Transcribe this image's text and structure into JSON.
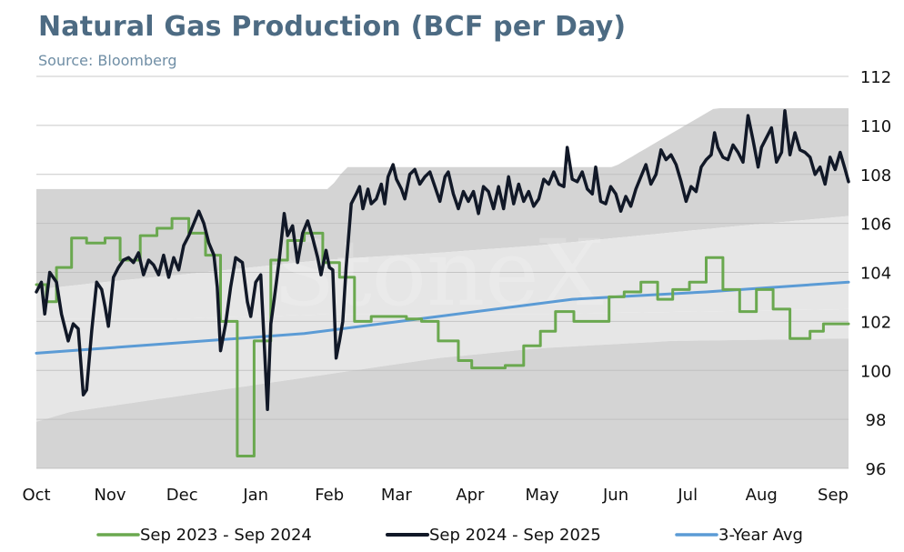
{
  "title": "Natural Gas Production (BCF per Day)",
  "subtitle": "Source: Bloomberg",
  "watermark": "StoneX",
  "chart_data": {
    "type": "line",
    "ylim": [
      96,
      112
    ],
    "yticks": [
      96,
      98,
      100,
      102,
      104,
      106,
      108,
      110,
      112
    ],
    "y_axis_side": "right",
    "x_range": [
      0,
      48.5
    ],
    "x_unit": "weeks from October 1",
    "month_ticks": [
      {
        "label": "Oct",
        "x": 0
      },
      {
        "label": "Nov",
        "x": 4.4
      },
      {
        "label": "Dec",
        "x": 8.7
      },
      {
        "label": "Jan",
        "x": 13.1
      },
      {
        "label": "Feb",
        "x": 17.5
      },
      {
        "label": "Mar",
        "x": 21.5
      },
      {
        "label": "Apr",
        "x": 25.9
      },
      {
        "label": "May",
        "x": 30.2
      },
      {
        "label": "Jun",
        "x": 34.6
      },
      {
        "label": "Jul",
        "x": 38.9
      },
      {
        "label": "Aug",
        "x": 43.3
      },
      {
        "label": "Sep",
        "x": 47.7
      }
    ],
    "grid": true,
    "legend_position": "bottom",
    "range_bands": {
      "outer_color": "#d4d4d4",
      "inner_color": "#e6e6e6",
      "outer_upper": [
        [
          0,
          107.4
        ],
        [
          17.5,
          107.4
        ],
        [
          18.5,
          108.3
        ],
        [
          34.5,
          108.3
        ],
        [
          39.5,
          110.3
        ],
        [
          40.5,
          110.7
        ],
        [
          48.5,
          110.7
        ]
      ],
      "inner_upper": [
        [
          0,
          103.3
        ],
        [
          4,
          103.6
        ],
        [
          10,
          104.0
        ],
        [
          17,
          104.5
        ],
        [
          24,
          104.8
        ],
        [
          30,
          105.1
        ],
        [
          36,
          105.5
        ],
        [
          42,
          105.9
        ],
        [
          48.5,
          106.3
        ]
      ],
      "inner_lower": [
        [
          0,
          102.1
        ],
        [
          8,
          102.1
        ],
        [
          18,
          102.3
        ],
        [
          30,
          102.3
        ],
        [
          48.5,
          102.5
        ]
      ],
      "outer_lower": [
        [
          0,
          97.9
        ],
        [
          2,
          98.3
        ],
        [
          5,
          98.6
        ],
        [
          9,
          99.0
        ],
        [
          13,
          99.4
        ],
        [
          18,
          99.9
        ],
        [
          24,
          100.5
        ],
        [
          30,
          100.9
        ],
        [
          38,
          101.2
        ],
        [
          48.5,
          101.3
        ]
      ]
    },
    "series": [
      {
        "name": "Sep 2023 - Sep 2024",
        "color": "#6aa84f",
        "style": "step",
        "points": [
          [
            0,
            103.5
          ],
          [
            0.6,
            102.8
          ],
          [
            1.2,
            104.2
          ],
          [
            2.1,
            105.4
          ],
          [
            3.0,
            105.2
          ],
          [
            4.1,
            105.4
          ],
          [
            5.0,
            104.5
          ],
          [
            6.2,
            105.5
          ],
          [
            7.2,
            105.8
          ],
          [
            8.1,
            106.2
          ],
          [
            9.1,
            105.6
          ],
          [
            10.1,
            104.7
          ],
          [
            11.0,
            102.0
          ],
          [
            12.0,
            96.5
          ],
          [
            13.0,
            101.2
          ],
          [
            14.0,
            104.5
          ],
          [
            15.0,
            105.3
          ],
          [
            16.0,
            105.6
          ],
          [
            17.1,
            104.4
          ],
          [
            18.1,
            103.8
          ],
          [
            19.0,
            102.0
          ],
          [
            20.0,
            102.2
          ],
          [
            21.2,
            102.2
          ],
          [
            22.1,
            102.1
          ],
          [
            23.0,
            102.0
          ],
          [
            24.0,
            101.2
          ],
          [
            25.2,
            100.4
          ],
          [
            26.0,
            100.1
          ],
          [
            27.0,
            100.1
          ],
          [
            28.0,
            100.2
          ],
          [
            29.1,
            101.0
          ],
          [
            30.1,
            101.6
          ],
          [
            31.0,
            102.4
          ],
          [
            32.1,
            102.0
          ],
          [
            33.1,
            102.0
          ],
          [
            34.2,
            103.0
          ],
          [
            35.1,
            103.2
          ],
          [
            36.1,
            103.6
          ],
          [
            37.1,
            102.9
          ],
          [
            38.0,
            103.3
          ],
          [
            39.0,
            103.6
          ],
          [
            40.0,
            104.6
          ],
          [
            41.0,
            103.3
          ],
          [
            42.0,
            102.4
          ],
          [
            43.0,
            103.3
          ],
          [
            44.0,
            102.5
          ],
          [
            45.0,
            101.3
          ],
          [
            46.2,
            101.6
          ],
          [
            47.0,
            101.9
          ],
          [
            48.0,
            101.9
          ],
          [
            48.5,
            101.9
          ]
        ]
      },
      {
        "name": "Sep 2024 - Sep 2025",
        "color": "#111827",
        "style": "line",
        "points": [
          [
            0,
            103.2
          ],
          [
            0.3,
            103.6
          ],
          [
            0.5,
            102.3
          ],
          [
            0.8,
            104.0
          ],
          [
            1.2,
            103.6
          ],
          [
            1.5,
            102.3
          ],
          [
            1.9,
            101.2
          ],
          [
            2.2,
            101.9
          ],
          [
            2.5,
            101.7
          ],
          [
            2.8,
            99.0
          ],
          [
            3.0,
            99.2
          ],
          [
            3.3,
            101.6
          ],
          [
            3.6,
            103.6
          ],
          [
            3.9,
            103.3
          ],
          [
            4.1,
            102.6
          ],
          [
            4.3,
            101.8
          ],
          [
            4.6,
            103.8
          ],
          [
            4.9,
            104.2
          ],
          [
            5.2,
            104.5
          ],
          [
            5.5,
            104.6
          ],
          [
            5.8,
            104.4
          ],
          [
            6.1,
            104.8
          ],
          [
            6.4,
            103.9
          ],
          [
            6.7,
            104.5
          ],
          [
            7.0,
            104.3
          ],
          [
            7.3,
            103.9
          ],
          [
            7.6,
            104.7
          ],
          [
            7.9,
            103.8
          ],
          [
            8.2,
            104.6
          ],
          [
            8.5,
            104.1
          ],
          [
            8.8,
            105.1
          ],
          [
            9.1,
            105.5
          ],
          [
            9.4,
            106.0
          ],
          [
            9.7,
            106.5
          ],
          [
            10.0,
            106.0
          ],
          [
            10.3,
            105.2
          ],
          [
            10.6,
            104.7
          ],
          [
            10.8,
            103.4
          ],
          [
            11.0,
            100.8
          ],
          [
            11.3,
            101.9
          ],
          [
            11.6,
            103.4
          ],
          [
            11.9,
            104.6
          ],
          [
            12.3,
            104.4
          ],
          [
            12.6,
            102.8
          ],
          [
            12.8,
            102.2
          ],
          [
            13.1,
            103.6
          ],
          [
            13.4,
            103.9
          ],
          [
            13.6,
            101.2
          ],
          [
            13.8,
            98.4
          ],
          [
            14.0,
            101.9
          ],
          [
            14.2,
            102.9
          ],
          [
            14.5,
            104.5
          ],
          [
            14.8,
            106.4
          ],
          [
            15.0,
            105.5
          ],
          [
            15.3,
            105.9
          ],
          [
            15.6,
            104.4
          ],
          [
            15.9,
            105.6
          ],
          [
            16.2,
            106.1
          ],
          [
            16.5,
            105.4
          ],
          [
            16.8,
            104.6
          ],
          [
            17.0,
            103.9
          ],
          [
            17.3,
            104.9
          ],
          [
            17.5,
            104.2
          ],
          [
            17.7,
            104.1
          ],
          [
            17.9,
            100.5
          ],
          [
            18.1,
            101.2
          ],
          [
            18.3,
            102.0
          ],
          [
            18.5,
            104.2
          ],
          [
            18.8,
            106.8
          ],
          [
            19.1,
            107.2
          ],
          [
            19.3,
            107.5
          ],
          [
            19.5,
            106.6
          ],
          [
            19.8,
            107.4
          ],
          [
            20.0,
            106.8
          ],
          [
            20.3,
            107.0
          ],
          [
            20.6,
            107.6
          ],
          [
            20.8,
            106.8
          ],
          [
            21.0,
            107.9
          ],
          [
            21.3,
            108.4
          ],
          [
            21.5,
            107.8
          ],
          [
            21.8,
            107.4
          ],
          [
            22.0,
            107.0
          ],
          [
            22.3,
            108.0
          ],
          [
            22.6,
            108.2
          ],
          [
            22.9,
            107.6
          ],
          [
            23.2,
            107.9
          ],
          [
            23.5,
            108.1
          ],
          [
            23.8,
            107.5
          ],
          [
            24.1,
            106.9
          ],
          [
            24.4,
            107.9
          ],
          [
            24.6,
            108.1
          ],
          [
            24.9,
            107.2
          ],
          [
            25.2,
            106.6
          ],
          [
            25.5,
            107.3
          ],
          [
            25.8,
            106.9
          ],
          [
            26.1,
            107.3
          ],
          [
            26.4,
            106.4
          ],
          [
            26.7,
            107.5
          ],
          [
            27.0,
            107.3
          ],
          [
            27.3,
            106.6
          ],
          [
            27.6,
            107.5
          ],
          [
            27.9,
            106.6
          ],
          [
            28.2,
            107.9
          ],
          [
            28.5,
            106.8
          ],
          [
            28.8,
            107.6
          ],
          [
            29.1,
            106.9
          ],
          [
            29.4,
            107.3
          ],
          [
            29.7,
            106.7
          ],
          [
            30.0,
            107.0
          ],
          [
            30.3,
            107.8
          ],
          [
            30.6,
            107.6
          ],
          [
            30.9,
            108.1
          ],
          [
            31.2,
            107.6
          ],
          [
            31.5,
            107.5
          ],
          [
            31.7,
            109.1
          ],
          [
            32.0,
            107.8
          ],
          [
            32.3,
            107.7
          ],
          [
            32.6,
            108.1
          ],
          [
            32.9,
            107.4
          ],
          [
            33.2,
            107.2
          ],
          [
            33.4,
            108.3
          ],
          [
            33.7,
            106.9
          ],
          [
            34.0,
            106.8
          ],
          [
            34.3,
            107.5
          ],
          [
            34.6,
            107.2
          ],
          [
            34.9,
            106.5
          ],
          [
            35.2,
            107.1
          ],
          [
            35.5,
            106.7
          ],
          [
            35.8,
            107.4
          ],
          [
            36.1,
            107.9
          ],
          [
            36.4,
            108.4
          ],
          [
            36.7,
            107.6
          ],
          [
            37.0,
            108.0
          ],
          [
            37.3,
            109.0
          ],
          [
            37.6,
            108.6
          ],
          [
            37.9,
            108.8
          ],
          [
            38.2,
            108.4
          ],
          [
            38.5,
            107.7
          ],
          [
            38.8,
            106.9
          ],
          [
            39.1,
            107.5
          ],
          [
            39.4,
            107.3
          ],
          [
            39.7,
            108.3
          ],
          [
            40.0,
            108.6
          ],
          [
            40.3,
            108.8
          ],
          [
            40.5,
            109.7
          ],
          [
            40.7,
            109.1
          ],
          [
            41.0,
            108.7
          ],
          [
            41.3,
            108.6
          ],
          [
            41.6,
            109.2
          ],
          [
            41.9,
            108.9
          ],
          [
            42.2,
            108.5
          ],
          [
            42.5,
            110.4
          ],
          [
            42.8,
            109.4
          ],
          [
            43.1,
            108.3
          ],
          [
            43.3,
            109.1
          ],
          [
            43.6,
            109.5
          ],
          [
            43.9,
            109.9
          ],
          [
            44.2,
            108.5
          ],
          [
            44.5,
            108.9
          ],
          [
            44.7,
            110.6
          ],
          [
            45.0,
            108.8
          ],
          [
            45.3,
            109.7
          ],
          [
            45.6,
            109.0
          ],
          [
            45.9,
            108.9
          ],
          [
            46.2,
            108.7
          ],
          [
            46.5,
            108.0
          ],
          [
            46.8,
            108.3
          ],
          [
            47.1,
            107.6
          ],
          [
            47.4,
            108.7
          ],
          [
            47.7,
            108.2
          ],
          [
            48.0,
            108.9
          ],
          [
            48.3,
            108.2
          ],
          [
            48.5,
            107.7
          ]
        ]
      },
      {
        "name": "3-Year Avg",
        "color": "#5b9bd5",
        "style": "line",
        "points": [
          [
            0,
            100.7
          ],
          [
            8,
            101.1
          ],
          [
            16,
            101.5
          ],
          [
            24,
            102.2
          ],
          [
            32,
            102.9
          ],
          [
            40,
            103.2
          ],
          [
            48.5,
            103.6
          ]
        ]
      }
    ]
  }
}
